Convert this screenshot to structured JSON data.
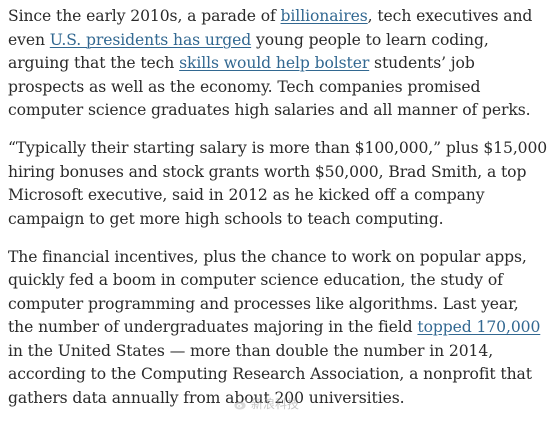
{
  "article": {
    "paragraphs": [
      {
        "segments": [
          {
            "text": "Since the early 2010s, a parade of "
          },
          {
            "text": "billionaires",
            "link": true
          },
          {
            "text": ", tech executives and even "
          },
          {
            "text": "U.S. presidents has urged",
            "link": true
          },
          {
            "text": " young people to learn coding, arguing that the tech "
          },
          {
            "text": "skills would help bolster",
            "link": true
          },
          {
            "text": " students’ job prospects as well as the economy. Tech companies promised computer science graduates high salaries and all manner of perks."
          }
        ]
      },
      {
        "segments": [
          {
            "text": "“Typically their starting salary is more than $100,000,” plus $15,000 hiring bonuses and stock grants worth $50,000, Brad Smith, a top Microsoft executive, said in 2012 as he kicked off a company campaign to get more high schools to teach computing."
          }
        ]
      },
      {
        "segments": [
          {
            "text": "The financial incentives, plus the chance to work on popular apps, quickly fed a boom in computer science education, the study of computer programming and processes like algorithms. Last year, the number of undergraduates majoring in the field "
          },
          {
            "text": "topped 170,000",
            "link": true
          },
          {
            "text": " in the United States — more than double the number in 2014, according to the Computing Research Association, a nonprofit that gathers data annually from about 200 universities."
          }
        ]
      }
    ]
  },
  "watermark": {
    "icon": "weibo-logo-icon",
    "text": "新浪科技"
  }
}
